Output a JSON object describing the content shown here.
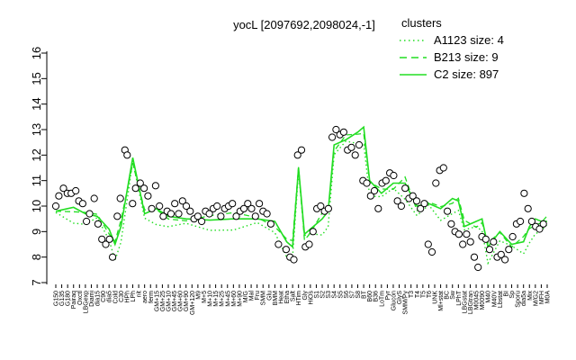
{
  "chart_data": {
    "type": "line",
    "title": "yocL [2097692,2098024,-1]",
    "xlabel": "",
    "ylabel": "",
    "ylim": [
      7,
      16
    ],
    "y_ticks": [
      "7",
      "8",
      "9",
      "10",
      "11",
      "12",
      "13",
      "14",
      "15",
      "16"
    ],
    "grid": false,
    "legend": {
      "title": "clusters",
      "placement": "top-right",
      "entries": [
        {
          "label": "A1123 size: 4",
          "style": "dotted"
        },
        {
          "label": "B213 size: 9",
          "style": "dashed"
        },
        {
          "label": "C2 size: 897",
          "style": "solid"
        }
      ]
    },
    "colors": {
      "series": "#22dd22",
      "point_stroke": "#000000",
      "point_fill": "#ffffff"
    },
    "x_tick_labels": [
      "G150",
      "G135",
      "G180",
      "Pairaq",
      "Oxctl",
      "LBGexp",
      "Diami",
      "dia15",
      "C90",
      "dia5",
      "Cold",
      "C30",
      "HPh",
      "LPh",
      "nit",
      "aero",
      "ferm",
      "GM+15",
      "GM+25",
      "GM+10",
      "GM+45",
      "GM+60",
      "GM+90",
      "GM+120",
      "M9",
      "M+5",
      "M+10",
      "M+15",
      "M+25",
      "M+45",
      "M+60",
      "M+90",
      "M/G",
      "Mal",
      "Fru",
      "SMM",
      "Glu",
      "BMM",
      "Heat",
      "Etha",
      "Salt",
      "HTim",
      "Gly",
      "HiOs",
      "S1",
      "S2",
      "S3",
      "S4",
      "S5",
      "S6",
      "S7",
      "S8",
      "BT",
      "B60",
      "B36",
      "LoTm",
      "Pyr",
      "Glucon",
      "GlyS",
      "SMM/Py",
      "T3",
      "T4",
      "T5",
      "T6",
      "UNK",
      "Ml+stat",
      "BC",
      "Sw",
      "LPhT",
      "LBGstat",
      "LBGtran",
      "M0045",
      "M0090",
      "M40",
      "M40V",
      "Lbstat",
      "BI",
      "Sp",
      "Sporu",
      "dia5a",
      "Mix",
      "M/G2",
      "MFH",
      "M0A"
    ],
    "series_C2": [
      {
        "x": 0,
        "y": 9.8
      },
      {
        "x": 3,
        "y": 9.95
      },
      {
        "x": 5,
        "y": 9.7
      },
      {
        "x": 7,
        "y": 9.6
      },
      {
        "x": 9,
        "y": 9.1
      },
      {
        "x": 10,
        "y": 8.5
      },
      {
        "x": 11,
        "y": 9.2
      },
      {
        "x": 13,
        "y": 11.9
      },
      {
        "x": 15,
        "y": 9.7
      },
      {
        "x": 17,
        "y": 9.9
      },
      {
        "x": 19,
        "y": 9.6
      },
      {
        "x": 22,
        "y": 9.5
      },
      {
        "x": 26,
        "y": 9.45
      },
      {
        "x": 30,
        "y": 9.5
      },
      {
        "x": 34,
        "y": 9.5
      },
      {
        "x": 37,
        "y": 9.4
      },
      {
        "x": 39,
        "y": 8.6
      },
      {
        "x": 40,
        "y": 8.4
      },
      {
        "x": 41,
        "y": 11.5
      },
      {
        "x": 42,
        "y": 8.9
      },
      {
        "x": 43,
        "y": 9.1
      },
      {
        "x": 45,
        "y": 9.5
      },
      {
        "x": 46,
        "y": 9.8
      },
      {
        "x": 47,
        "y": 12.4
      },
      {
        "x": 49,
        "y": 12.6
      },
      {
        "x": 51,
        "y": 12.9
      },
      {
        "x": 52,
        "y": 13.1
      },
      {
        "x": 53,
        "y": 11.0
      },
      {
        "x": 55,
        "y": 10.5
      },
      {
        "x": 57,
        "y": 10.9
      },
      {
        "x": 59,
        "y": 10.9
      },
      {
        "x": 61,
        "y": 10.0
      },
      {
        "x": 63,
        "y": 10.1
      },
      {
        "x": 65,
        "y": 9.9
      },
      {
        "x": 67,
        "y": 10.3
      },
      {
        "x": 68,
        "y": 10.2
      },
      {
        "x": 69,
        "y": 9.2
      },
      {
        "x": 71,
        "y": 9.4
      },
      {
        "x": 72,
        "y": 9.5
      },
      {
        "x": 73,
        "y": 8.4
      },
      {
        "x": 75,
        "y": 9.0
      },
      {
        "x": 77,
        "y": 8.5
      },
      {
        "x": 79,
        "y": 8.6
      },
      {
        "x": 80,
        "y": 9.2
      },
      {
        "x": 81,
        "y": 9.5
      },
      {
        "x": 82,
        "y": 9.4
      },
      {
        "x": 83,
        "y": 9.4
      }
    ],
    "points": [
      {
        "x": 0,
        "y": 10.0
      },
      {
        "x": 0.4,
        "y": 10.4
      },
      {
        "x": 1,
        "y": 10.7
      },
      {
        "x": 1.5,
        "y": 10.5
      },
      {
        "x": 2,
        "y": 10.5
      },
      {
        "x": 2.6,
        "y": 10.6
      },
      {
        "x": 3,
        "y": 10.2
      },
      {
        "x": 3.5,
        "y": 10.1
      },
      {
        "x": 4,
        "y": 9.4
      },
      {
        "x": 4.4,
        "y": 9.7
      },
      {
        "x": 5,
        "y": 10.3
      },
      {
        "x": 5.5,
        "y": 9.3
      },
      {
        "x": 6,
        "y": 8.7
      },
      {
        "x": 6.5,
        "y": 8.5
      },
      {
        "x": 7,
        "y": 8.7
      },
      {
        "x": 7.4,
        "y": 8.0
      },
      {
        "x": 8,
        "y": 9.6
      },
      {
        "x": 8.4,
        "y": 10.3
      },
      {
        "x": 9,
        "y": 12.2
      },
      {
        "x": 9.3,
        "y": 12.0
      },
      {
        "x": 10,
        "y": 10.1
      },
      {
        "x": 10.4,
        "y": 10.7
      },
      {
        "x": 11,
        "y": 10.9
      },
      {
        "x": 11.5,
        "y": 10.7
      },
      {
        "x": 12,
        "y": 10.4
      },
      {
        "x": 12.5,
        "y": 9.9
      },
      {
        "x": 13,
        "y": 10.8
      },
      {
        "x": 13.5,
        "y": 10.0
      },
      {
        "x": 14,
        "y": 9.6
      },
      {
        "x": 14.5,
        "y": 9.8
      },
      {
        "x": 15,
        "y": 9.7
      },
      {
        "x": 15.5,
        "y": 10.1
      },
      {
        "x": 16,
        "y": 9.7
      },
      {
        "x": 16.5,
        "y": 10.2
      },
      {
        "x": 17,
        "y": 10.0
      },
      {
        "x": 17.5,
        "y": 9.8
      },
      {
        "x": 18,
        "y": 9.5
      },
      {
        "x": 18.5,
        "y": 9.6
      },
      {
        "x": 19,
        "y": 9.4
      },
      {
        "x": 19.5,
        "y": 9.8
      },
      {
        "x": 20,
        "y": 9.7
      },
      {
        "x": 20.5,
        "y": 9.9
      },
      {
        "x": 21,
        "y": 10.0
      },
      {
        "x": 21.5,
        "y": 9.6
      },
      {
        "x": 22,
        "y": 9.9
      },
      {
        "x": 22.5,
        "y": 10.0
      },
      {
        "x": 23,
        "y": 10.1
      },
      {
        "x": 23.5,
        "y": 9.6
      },
      {
        "x": 24,
        "y": 9.8
      },
      {
        "x": 24.5,
        "y": 9.9
      },
      {
        "x": 25,
        "y": 10.1
      },
      {
        "x": 25.5,
        "y": 9.9
      },
      {
        "x": 26,
        "y": 9.6
      },
      {
        "x": 26.5,
        "y": 10.1
      },
      {
        "x": 27,
        "y": 9.8
      },
      {
        "x": 27.5,
        "y": 9.7
      },
      {
        "x": 28,
        "y": 9.3
      },
      {
        "x": 29,
        "y": 8.5
      },
      {
        "x": 30,
        "y": 8.3
      },
      {
        "x": 30.5,
        "y": 8.0
      },
      {
        "x": 31,
        "y": 7.9
      },
      {
        "x": 31.5,
        "y": 12.0
      },
      {
        "x": 32,
        "y": 12.2
      },
      {
        "x": 32.5,
        "y": 8.4
      },
      {
        "x": 33,
        "y": 8.5
      },
      {
        "x": 33.5,
        "y": 9.0
      },
      {
        "x": 34,
        "y": 9.9
      },
      {
        "x": 34.5,
        "y": 10.0
      },
      {
        "x": 35,
        "y": 9.8
      },
      {
        "x": 35.5,
        "y": 9.9
      },
      {
        "x": 36,
        "y": 12.7
      },
      {
        "x": 36.5,
        "y": 13.0
      },
      {
        "x": 37,
        "y": 12.8
      },
      {
        "x": 37.5,
        "y": 12.9
      },
      {
        "x": 38,
        "y": 12.2
      },
      {
        "x": 38.5,
        "y": 12.3
      },
      {
        "x": 39,
        "y": 12.0
      },
      {
        "x": 39.5,
        "y": 12.4
      },
      {
        "x": 40,
        "y": 11.0
      },
      {
        "x": 40.5,
        "y": 10.9
      },
      {
        "x": 41,
        "y": 10.4
      },
      {
        "x": 41.5,
        "y": 10.6
      },
      {
        "x": 42,
        "y": 9.9
      },
      {
        "x": 42.5,
        "y": 10.9
      },
      {
        "x": 43,
        "y": 11.0
      },
      {
        "x": 43.5,
        "y": 11.3
      },
      {
        "x": 44,
        "y": 11.2
      },
      {
        "x": 44.5,
        "y": 10.2
      },
      {
        "x": 45,
        "y": 10.0
      },
      {
        "x": 45.5,
        "y": 10.7
      },
      {
        "x": 46,
        "y": 10.3
      },
      {
        "x": 46.5,
        "y": 10.4
      },
      {
        "x": 47,
        "y": 10.2
      },
      {
        "x": 47.5,
        "y": 9.9
      },
      {
        "x": 48,
        "y": 10.1
      },
      {
        "x": 48.5,
        "y": 8.5
      },
      {
        "x": 49,
        "y": 8.2
      },
      {
        "x": 49.5,
        "y": 10.9
      },
      {
        "x": 50,
        "y": 11.4
      },
      {
        "x": 50.5,
        "y": 11.5
      },
      {
        "x": 51,
        "y": 9.8
      },
      {
        "x": 51.5,
        "y": 9.3
      },
      {
        "x": 52,
        "y": 9.0
      },
      {
        "x": 52.5,
        "y": 8.9
      },
      {
        "x": 53,
        "y": 8.5
      },
      {
        "x": 53.5,
        "y": 8.9
      },
      {
        "x": 54,
        "y": 8.6
      },
      {
        "x": 54.5,
        "y": 8.0
      },
      {
        "x": 55,
        "y": 7.6
      },
      {
        "x": 55.5,
        "y": 8.8
      },
      {
        "x": 56,
        "y": 8.7
      },
      {
        "x": 56.5,
        "y": 8.3
      },
      {
        "x": 57,
        "y": 8.6
      },
      {
        "x": 57.5,
        "y": 8.0
      },
      {
        "x": 58,
        "y": 8.1
      },
      {
        "x": 58.5,
        "y": 7.9
      },
      {
        "x": 59,
        "y": 8.3
      },
      {
        "x": 59.5,
        "y": 8.8
      },
      {
        "x": 60,
        "y": 9.3
      },
      {
        "x": 60.5,
        "y": 9.4
      },
      {
        "x": 61,
        "y": 10.5
      },
      {
        "x": 61.5,
        "y": 9.9
      },
      {
        "x": 62,
        "y": 9.4
      },
      {
        "x": 62.5,
        "y": 9.2
      },
      {
        "x": 63,
        "y": 9.1
      },
      {
        "x": 63.5,
        "y": 9.3
      }
    ]
  }
}
